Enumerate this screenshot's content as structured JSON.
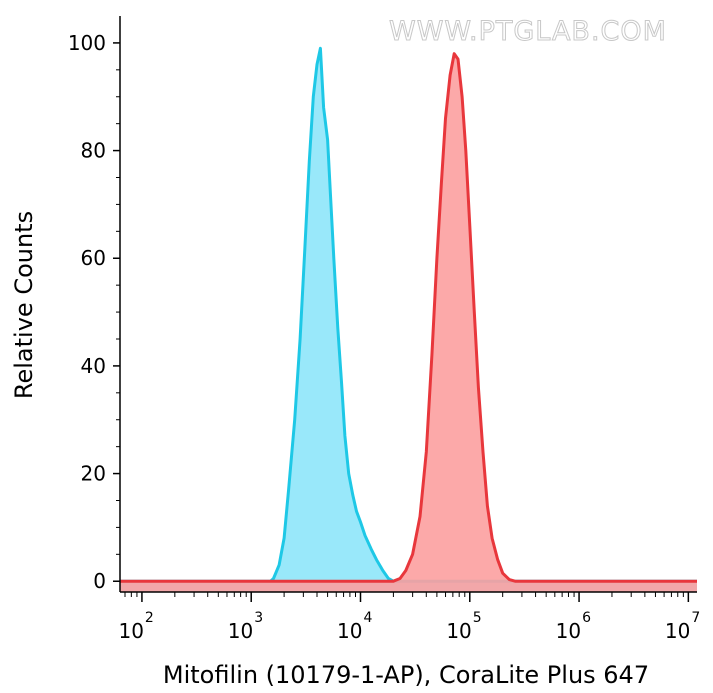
{
  "watermark": "WWW.PTGLAB.COM",
  "chart_data": {
    "type": "area",
    "xlabel": "Mitofilin (10179-1-AP), CoraLite Plus 647",
    "ylabel": "Relative Counts",
    "x_scale": "log",
    "xlim": [
      63,
      12000000
    ],
    "ylim": [
      -2,
      105
    ],
    "y_ticks": [
      0,
      20,
      40,
      60,
      80,
      100
    ],
    "x_ticks": [
      {
        "value": 100,
        "base": "10",
        "exp": "2"
      },
      {
        "value": 1000,
        "base": "10",
        "exp": "3"
      },
      {
        "value": 10000,
        "base": "10",
        "exp": "4"
      },
      {
        "value": 100000,
        "base": "10",
        "exp": "5"
      },
      {
        "value": 1000000,
        "base": "10",
        "exp": "6"
      },
      {
        "value": 10000000,
        "base": "10",
        "exp": "7"
      }
    ],
    "grid": false,
    "legend": "none",
    "series": [
      {
        "color": "#1ec8e6",
        "fill": "#8ee6fa",
        "points": [
          [
            63,
            0
          ],
          [
            1500,
            0
          ],
          [
            1600,
            0.5
          ],
          [
            1800,
            3
          ],
          [
            2000,
            8
          ],
          [
            2200,
            17
          ],
          [
            2500,
            30
          ],
          [
            2800,
            45
          ],
          [
            3100,
            62
          ],
          [
            3400,
            78
          ],
          [
            3700,
            90
          ],
          [
            4000,
            96
          ],
          [
            4300,
            99
          ],
          [
            4600,
            88
          ],
          [
            5000,
            82
          ],
          [
            5300,
            72
          ],
          [
            5700,
            60
          ],
          [
            6200,
            47
          ],
          [
            6700,
            37
          ],
          [
            7200,
            27
          ],
          [
            7800,
            20
          ],
          [
            8500,
            16
          ],
          [
            9200,
            13
          ],
          [
            10000,
            11
          ],
          [
            11000,
            8.5
          ],
          [
            12500,
            6
          ],
          [
            14000,
            4
          ],
          [
            16000,
            2
          ],
          [
            18000,
            0.5
          ],
          [
            20000,
            0
          ],
          [
            12000000,
            0
          ]
        ]
      },
      {
        "color": "#e8373c",
        "fill": "#fca0a0",
        "points": [
          [
            63,
            0
          ],
          [
            20000,
            0
          ],
          [
            23000,
            0.5
          ],
          [
            26000,
            2
          ],
          [
            30000,
            5
          ],
          [
            35000,
            12
          ],
          [
            40000,
            24
          ],
          [
            45000,
            42
          ],
          [
            50000,
            60
          ],
          [
            55000,
            74
          ],
          [
            60000,
            86
          ],
          [
            66000,
            94
          ],
          [
            72000,
            98
          ],
          [
            78000,
            97
          ],
          [
            85000,
            90
          ],
          [
            92000,
            80
          ],
          [
            100000,
            66
          ],
          [
            110000,
            50
          ],
          [
            120000,
            36
          ],
          [
            132000,
            24
          ],
          [
            145000,
            14
          ],
          [
            160000,
            8
          ],
          [
            180000,
            4
          ],
          [
            200000,
            1.5
          ],
          [
            230000,
            0.3
          ],
          [
            260000,
            0
          ],
          [
            12000000,
            0
          ]
        ]
      }
    ]
  }
}
